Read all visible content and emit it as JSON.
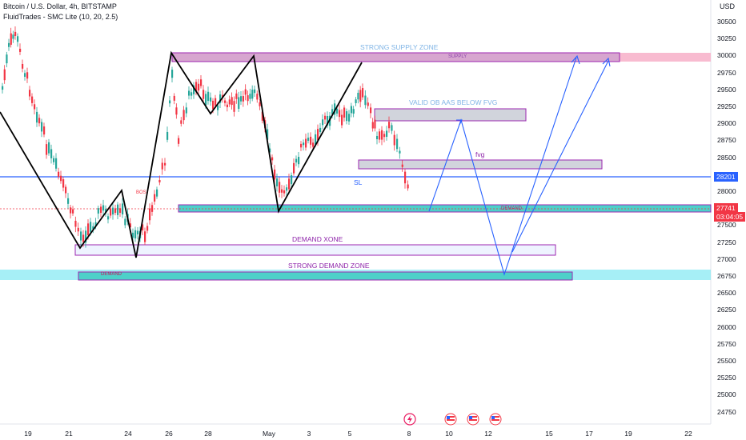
{
  "header": {
    "symbol": "Bitcoin / U.S. Dollar, 4h, BITSTAMP",
    "indicator": "FluidTrades - SMC Lite  (10, 20, 2.5)"
  },
  "price_axis": {
    "currency": "USD",
    "ticks": [
      "30500",
      "30250",
      "30000",
      "29750",
      "29500",
      "29250",
      "29000",
      "28750",
      "28500",
      "28250",
      "28000",
      "27750",
      "27500",
      "27250",
      "27000",
      "26750",
      "26500",
      "26250",
      "26000",
      "25750",
      "25500",
      "25250",
      "25000",
      "24750"
    ]
  },
  "time_axis": {
    "ticks": [
      "19",
      "21",
      "24",
      "26",
      "28",
      "May",
      "3",
      "5",
      "8",
      "10",
      "12",
      "15",
      "17",
      "19",
      "22"
    ]
  },
  "markers": {
    "current_price": "27741",
    "countdown": "03:04:05",
    "line_price": "28201"
  },
  "annotations": {
    "strong_supply_zone": "STRONG SUPPLY ZONE",
    "supply": "SUPPLY",
    "valid_ob": "VALID OB AAS BELOW FVG",
    "fvg": "fvg",
    "sl": "SL",
    "demand_right": "DEMAND",
    "demand_xone": "DEMAND XONE",
    "strong_demand_zone": "STRONG DEMAND ZONE",
    "demand_left": "DEMAND",
    "bos": "BOS"
  },
  "colors": {
    "up": "#26a69a",
    "down": "#f23645",
    "zigzag": "#000000",
    "projection": "#2962ff",
    "hline": "#2962ff",
    "supply_fill": "#d7a6cf",
    "demand_fill": "#4dd0c9",
    "cyan_band": "#80e8f2"
  },
  "events": {
    "icons": [
      "lightning-event-icon",
      "us-flag-event-icon",
      "us-flag-event-icon",
      "us-flag-event-icon"
    ]
  }
}
